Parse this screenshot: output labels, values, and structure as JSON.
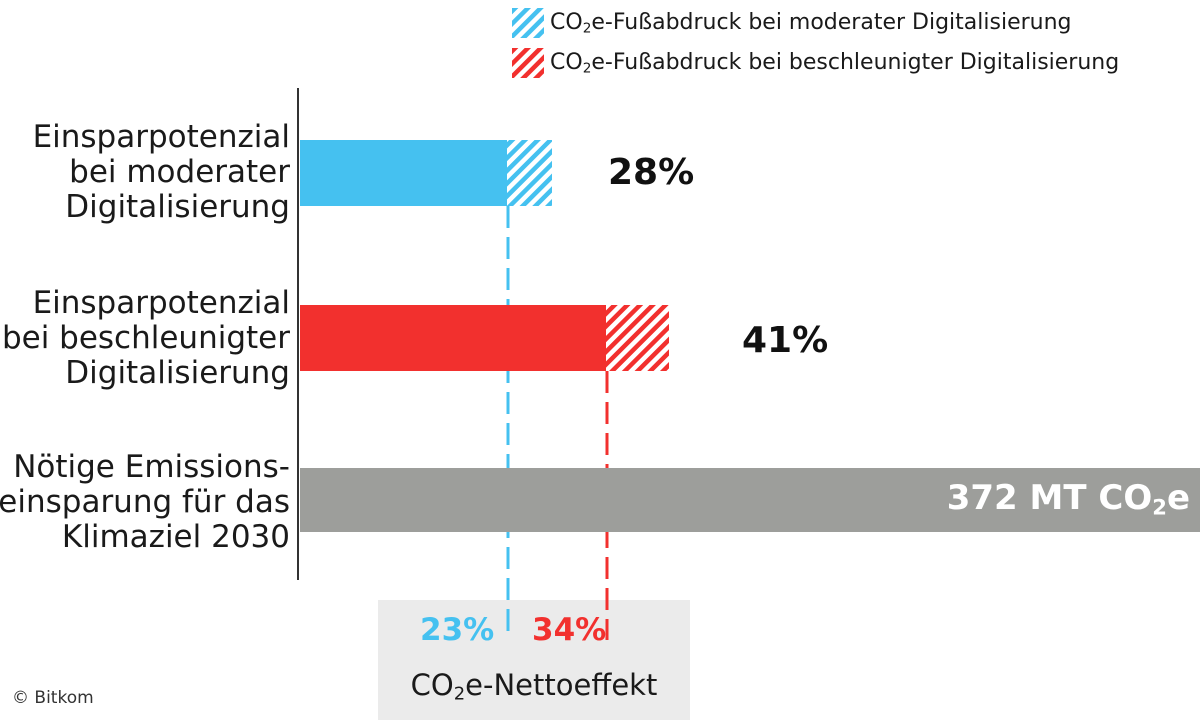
{
  "legend": [
    {
      "name": "CO2e-Fußabdruck bei moderater Digitalisierung",
      "prefix": "CO",
      "sub": "2",
      "suffix": "e-Fußabdruck bei moderater Digitalisierung",
      "color": "#45c1f0"
    },
    {
      "name": "CO2e-Fußabdruck bei beschleunigter Digitalisierung",
      "prefix": "CO",
      "sub": "2",
      "suffix": "e-Fußabdruck bei beschleunigter Digitalisierung",
      "color": "#f2302e"
    }
  ],
  "chart_data": {
    "type": "bar",
    "orientation": "horizontal",
    "categories": [
      "Einsparpotenzial bei moderater Digitalisierung",
      "Einsparpotenzial bei beschleunigter Digitalisierung",
      "Nötige Emissionseinsparung für das Klimaziel 2030"
    ],
    "category_lines": [
      [
        "Einsparpotenzial",
        "bei moderater",
        "Digitalisierung"
      ],
      [
        "Einsparpotenzial",
        "bei beschleunigter",
        "Digitalisierung"
      ],
      [
        "Nötige Emissions-",
        "einsparung für das",
        "Klimaziel 2030"
      ]
    ],
    "series": [
      {
        "name": "Einsparpotenzial bei moderater Digitalisierung",
        "gross": 28,
        "net": 23,
        "gross_label": "28%",
        "net_label": "23%",
        "color": "#45c1f0"
      },
      {
        "name": "Einsparpotenzial bei beschleunigter Digitalisierung",
        "gross": 41,
        "net": 34,
        "gross_label": "41%",
        "net_label": "34%",
        "color": "#f2302e"
      },
      {
        "name": "Nötige Emissionseinsparung für das Klimaziel 2030",
        "value": 100,
        "label_prefix": "372 MT CO",
        "label_sub": "2",
        "label_suffix": "e",
        "color": "#9d9e9b"
      }
    ],
    "unit": "% of 372 MT CO2e",
    "xlim": [
      0,
      100
    ],
    "net_effect_title_prefix": "CO",
    "net_effect_title_sub": "2",
    "net_effect_title_suffix": "e-Nettoeffekt"
  },
  "copyright": "© Bitkom"
}
